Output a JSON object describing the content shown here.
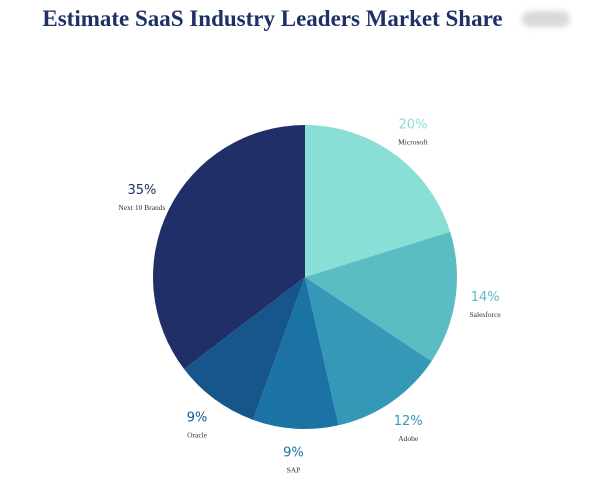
{
  "chart_data": {
    "type": "pie",
    "title": "Estimate SaaS Industry Leaders Market Share",
    "start_angle_deg": 0,
    "direction": "clockwise",
    "slices": [
      {
        "name": "Microsoft",
        "value": 20,
        "label": "20%",
        "color": "#89dfd6",
        "label_color": "#89dfd6"
      },
      {
        "name": "Salesforce",
        "value": 14,
        "label": "14%",
        "color": "#5bbcc3",
        "label_color": "#5bbcc3"
      },
      {
        "name": "Adobe",
        "value": 12,
        "label": "12%",
        "color": "#3598b7",
        "label_color": "#3598b7"
      },
      {
        "name": "SAP",
        "value": 9,
        "label": "9%",
        "color": "#1a73a4",
        "label_color": "#1a73a4"
      },
      {
        "name": "Oracle",
        "value": 9,
        "label": "9%",
        "color": "#17568a",
        "label_color": "#17568a"
      },
      {
        "name": "Next 10 Brands",
        "value": 35,
        "label": "35%",
        "color": "#202f68",
        "label_color": "#202f68"
      }
    ]
  }
}
